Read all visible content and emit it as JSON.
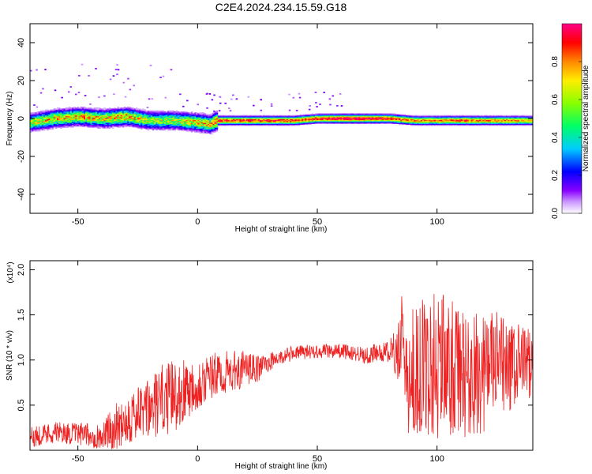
{
  "title": "C2E4.2024.234.15.59.G18",
  "chart_data": [
    {
      "type": "heatmap",
      "title": "C2E4.2024.234.15.59.G18",
      "xlabel": "Height of straight line (km)",
      "ylabel": "Frequency (Hz)",
      "xlim": [
        -70,
        140
      ],
      "ylim": [
        -50,
        50
      ],
      "x_ticks": [
        "-50",
        "0",
        "50",
        "100"
      ],
      "y_ticks": [
        "-40",
        "-20",
        "0",
        "20",
        "40"
      ],
      "colorbar": {
        "label": "Normalized spectral amplitude",
        "range": [
          0,
          1
        ],
        "ticks": [
          "0.0",
          "0.2",
          "0.4",
          "0.6",
          "0.8"
        ],
        "colors": [
          "#ffffff",
          "#8800ff",
          "#0000ff",
          "#00ccff",
          "#00ff66",
          "#88ff00",
          "#ffee00",
          "#ff8800",
          "#ff0000",
          "#ff0088"
        ]
      },
      "ridge": {
        "description_points_x": [
          -70,
          -60,
          -50,
          -40,
          -30,
          -20,
          -10,
          0,
          5,
          8,
          10,
          20,
          30,
          40,
          50,
          60,
          70,
          80,
          90,
          100,
          110,
          120,
          130,
          140
        ],
        "center_frequency_hz": [
          -2,
          0,
          1,
          0,
          1,
          -1,
          -1,
          -2,
          -3,
          -1,
          -1,
          -1,
          -1,
          -1,
          0,
          0,
          0,
          0,
          -1,
          -1,
          -1,
          -1,
          -1,
          -1
        ],
        "peak_amplitude": [
          0.6,
          0.7,
          0.7,
          0.7,
          0.75,
          0.6,
          0.6,
          0.7,
          0.7,
          0.9,
          0.9,
          0.9,
          0.9,
          0.9,
          0.9,
          1.0,
          1.0,
          0.9,
          0.8,
          0.8,
          0.85,
          0.8,
          0.8,
          0.75
        ]
      }
    },
    {
      "type": "line",
      "xlabel": "Height of straight line (km)",
      "ylabel": "SNR (10 * v/v)",
      "y_multiplier": "(x10⁴)",
      "xlim": [
        -70,
        140
      ],
      "ylim": [
        0,
        2.1
      ],
      "x_ticks": [
        "-50",
        "0",
        "50",
        "100"
      ],
      "y_ticks": [
        "0.5",
        "1.0",
        "1.5",
        "2.0"
      ],
      "color": "#ee2222",
      "envelope": {
        "x": [
          -70,
          -60,
          -50,
          -40,
          -35,
          -30,
          -25,
          -20,
          -15,
          -10,
          0,
          10,
          20,
          25,
          30,
          40,
          50,
          60,
          70,
          80,
          83,
          85,
          86,
          88,
          90,
          95,
          100,
          105,
          110,
          115,
          120,
          125,
          130,
          135,
          140
        ],
        "mean": [
          0.15,
          0.2,
          0.18,
          0.15,
          0.25,
          0.35,
          0.4,
          0.45,
          0.55,
          0.6,
          0.75,
          0.85,
          0.9,
          0.9,
          0.98,
          1.08,
          1.1,
          1.1,
          1.05,
          1.1,
          1.05,
          1.3,
          1.2,
          0.6,
          0.9,
          0.9,
          1.0,
          0.9,
          0.85,
          0.8,
          0.9,
          0.95,
          0.9,
          0.95,
          1.0
        ],
        "amplitude": [
          0.12,
          0.12,
          0.12,
          0.15,
          0.25,
          0.3,
          0.3,
          0.35,
          0.4,
          0.4,
          0.3,
          0.25,
          0.2,
          0.15,
          0.1,
          0.08,
          0.08,
          0.08,
          0.1,
          0.12,
          0.3,
          0.5,
          0.4,
          0.5,
          0.7,
          0.8,
          0.9,
          0.8,
          0.7,
          0.7,
          0.7,
          0.6,
          0.5,
          0.45,
          0.4
        ]
      }
    }
  ]
}
